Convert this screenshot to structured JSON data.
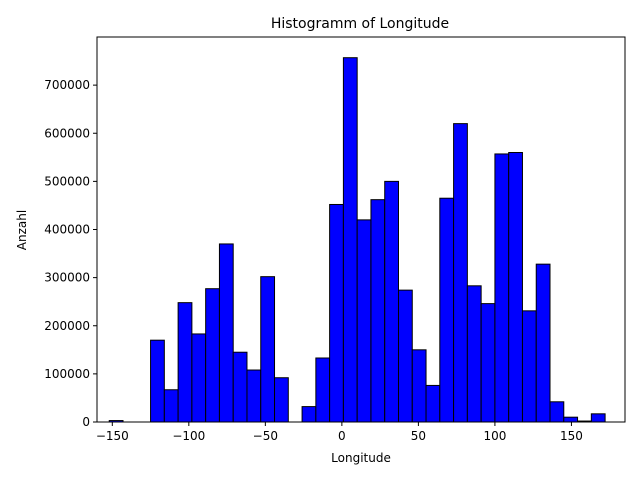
{
  "chart_data": {
    "type": "bar",
    "title": "Histogramm of Longitude",
    "xlabel": "Longitude",
    "ylabel": "Anzahl",
    "xlim": [
      -160,
      185
    ],
    "ylim": [
      0,
      800000
    ],
    "xticks": [
      -150,
      -100,
      -50,
      0,
      50,
      100,
      150
    ],
    "yticks": [
      0,
      100000,
      200000,
      300000,
      400000,
      500000,
      600000,
      700000
    ],
    "bar_color": "#0000ff",
    "edge_color": "#000000",
    "grid": false,
    "bins": [
      {
        "x0": -152,
        "x1": -143,
        "value": 3000
      },
      {
        "x0": -143,
        "x1": -125,
        "value": 0
      },
      {
        "x0": -125,
        "x1": -116,
        "value": 170000
      },
      {
        "x0": -116,
        "x1": -107,
        "value": 67000
      },
      {
        "x0": -107,
        "x1": -98,
        "value": 248000
      },
      {
        "x0": -98,
        "x1": -89,
        "value": 183000
      },
      {
        "x0": -89,
        "x1": -80,
        "value": 277000
      },
      {
        "x0": -80,
        "x1": -71,
        "value": 370000
      },
      {
        "x0": -71,
        "x1": -62,
        "value": 145000
      },
      {
        "x0": -62,
        "x1": -53,
        "value": 108000
      },
      {
        "x0": -53,
        "x1": -44,
        "value": 302000
      },
      {
        "x0": -44,
        "x1": -35,
        "value": 92000
      },
      {
        "x0": -35,
        "x1": -26,
        "value": 0
      },
      {
        "x0": -26,
        "x1": -17,
        "value": 32000
      },
      {
        "x0": -17,
        "x1": -8,
        "value": 133000
      },
      {
        "x0": -8,
        "x1": 1,
        "value": 452000
      },
      {
        "x0": 1,
        "x1": 10,
        "value": 757000
      },
      {
        "x0": 10,
        "x1": 19,
        "value": 420000
      },
      {
        "x0": 19,
        "x1": 28,
        "value": 462000
      },
      {
        "x0": 28,
        "x1": 37,
        "value": 500000
      },
      {
        "x0": 37,
        "x1": 46,
        "value": 274000
      },
      {
        "x0": 46,
        "x1": 55,
        "value": 150000
      },
      {
        "x0": 55,
        "x1": 64,
        "value": 76000
      },
      {
        "x0": 64,
        "x1": 73,
        "value": 465000
      },
      {
        "x0": 73,
        "x1": 82,
        "value": 620000
      },
      {
        "x0": 82,
        "x1": 91,
        "value": 283000
      },
      {
        "x0": 91,
        "x1": 100,
        "value": 246000
      },
      {
        "x0": 100,
        "x1": 109,
        "value": 557000
      },
      {
        "x0": 109,
        "x1": 118,
        "value": 560000
      },
      {
        "x0": 118,
        "x1": 127,
        "value": 231000
      },
      {
        "x0": 127,
        "x1": 136,
        "value": 328000
      },
      {
        "x0": 136,
        "x1": 145,
        "value": 42000
      },
      {
        "x0": 145,
        "x1": 154,
        "value": 10000
      },
      {
        "x0": 154,
        "x1": 163,
        "value": 2000
      },
      {
        "x0": 163,
        "x1": 172,
        "value": 17000
      }
    ]
  }
}
